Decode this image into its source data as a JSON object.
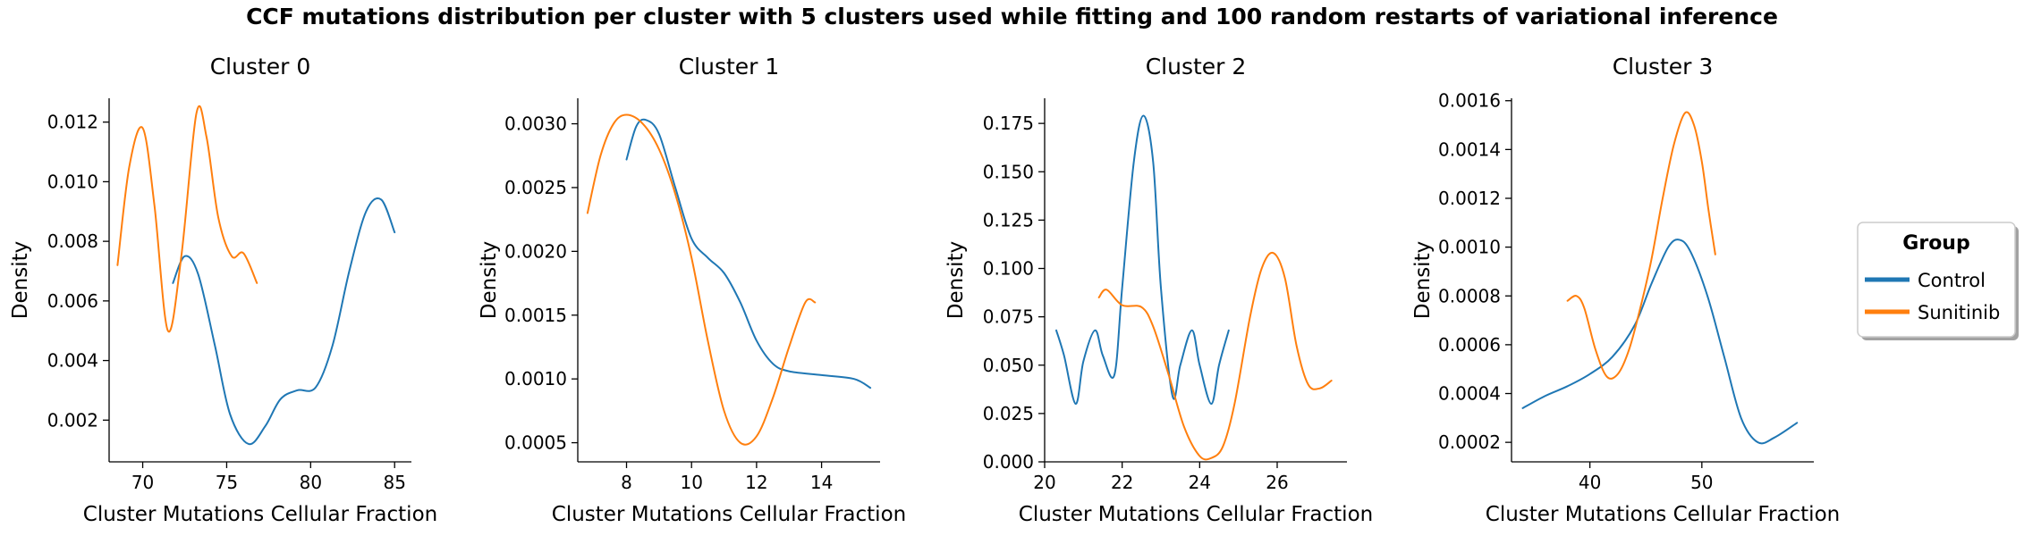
{
  "figure": {
    "title": "CCF mutations distribution per cluster with 5 clusters used while fitting and 100 random restarts of variational inference"
  },
  "legend": {
    "title": "Group",
    "placement": "right",
    "entries": [
      {
        "label": "Control",
        "color": "#1f77b4"
      },
      {
        "label": "Sunitinib",
        "color": "#ff7f0e"
      }
    ]
  },
  "chart_data": [
    {
      "type": "line",
      "title": "Cluster 0",
      "xlabel": "Cluster Mutations Cellular Fraction",
      "ylabel": "Density",
      "xlim": [
        68,
        86
      ],
      "ylim": [
        0.0006,
        0.0128
      ],
      "xticks": [
        70,
        75,
        80,
        85
      ],
      "xtick_labels": [
        "70",
        "75",
        "80",
        "85"
      ],
      "yticks": [
        0.002,
        0.004,
        0.006,
        0.008,
        0.01,
        0.012
      ],
      "ytick_labels": [
        "0.002",
        "0.004",
        "0.006",
        "0.008",
        "0.010",
        "0.012"
      ],
      "series": [
        {
          "name": "Control",
          "color": "#1f77b4",
          "x": [
            71.8,
            72.5,
            73.3,
            74.3,
            75.2,
            76.3,
            77.3,
            78.2,
            79.2,
            80.3,
            81.3,
            82.3,
            83.3,
            84.2,
            85.0
          ],
          "y": [
            0.0066,
            0.0075,
            0.0069,
            0.0045,
            0.0022,
            0.0012,
            0.0018,
            0.0027,
            0.003,
            0.0031,
            0.0045,
            0.007,
            0.009,
            0.0094,
            0.0083
          ]
        },
        {
          "name": "Sunitinib",
          "color": "#ff7f0e",
          "x": [
            68.5,
            69.2,
            70.0,
            70.7,
            71.5,
            72.3,
            73.2,
            73.8,
            74.5,
            75.3,
            76.0,
            76.8
          ],
          "y": [
            0.0072,
            0.0105,
            0.0118,
            0.0092,
            0.005,
            0.0075,
            0.0123,
            0.0115,
            0.0088,
            0.0075,
            0.0076,
            0.0066
          ]
        }
      ]
    },
    {
      "type": "line",
      "title": "Cluster 1",
      "xlabel": "Cluster Mutations Cellular Fraction",
      "ylabel": "Density",
      "xlim": [
        6.5,
        15.8
      ],
      "ylim": [
        0.00035,
        0.0032
      ],
      "xticks": [
        8,
        10,
        12,
        14
      ],
      "xtick_labels": [
        "8",
        "10",
        "12",
        "14"
      ],
      "yticks": [
        0.0005,
        0.001,
        0.0015,
        0.002,
        0.0025,
        0.003
      ],
      "ytick_labels": [
        "0.0005",
        "0.0010",
        "0.0015",
        "0.0020",
        "0.0025",
        "0.0030"
      ],
      "series": [
        {
          "name": "Control",
          "color": "#1f77b4",
          "x": [
            8.0,
            8.3,
            8.6,
            9.0,
            9.5,
            10.0,
            10.5,
            11.0,
            11.5,
            12.0,
            12.5,
            13.0,
            14.0,
            15.0,
            15.5
          ],
          "y": [
            0.00272,
            0.00298,
            0.00303,
            0.00292,
            0.0025,
            0.0021,
            0.00195,
            0.00183,
            0.0016,
            0.0013,
            0.00112,
            0.00106,
            0.00103,
            0.001,
            0.00093
          ]
        },
        {
          "name": "Sunitinib",
          "color": "#ff7f0e",
          "x": [
            6.8,
            7.2,
            7.6,
            8.0,
            8.5,
            9.0,
            9.5,
            10.0,
            10.5,
            11.0,
            11.5,
            12.0,
            12.5,
            13.0,
            13.5,
            13.8
          ],
          "y": [
            0.0023,
            0.00275,
            0.003,
            0.00307,
            0.003,
            0.0028,
            0.00245,
            0.00195,
            0.0013,
            0.00075,
            0.0005,
            0.00055,
            0.00085,
            0.00125,
            0.0016,
            0.0016
          ]
        }
      ]
    },
    {
      "type": "line",
      "title": "Cluster 2",
      "xlabel": "Cluster Mutations Cellular Fraction",
      "ylabel": "Density",
      "xlim": [
        20,
        27.8
      ],
      "ylim": [
        0,
        0.188
      ],
      "xticks": [
        20,
        22,
        24,
        26
      ],
      "xtick_labels": [
        "20",
        "22",
        "24",
        "26"
      ],
      "yticks": [
        0.0,
        0.025,
        0.05,
        0.075,
        0.1,
        0.125,
        0.15,
        0.175
      ],
      "ytick_labels": [
        "0.000",
        "0.025",
        "0.050",
        "0.075",
        "0.100",
        "0.125",
        "0.150",
        "0.175"
      ],
      "series": [
        {
          "name": "Control",
          "color": "#1f77b4",
          "x": [
            20.3,
            20.5,
            20.8,
            21.0,
            21.3,
            21.5,
            21.8,
            22.0,
            22.3,
            22.55,
            22.8,
            23.0,
            23.3,
            23.5,
            23.8,
            24.0,
            24.3,
            24.5,
            24.75
          ],
          "y": [
            0.068,
            0.055,
            0.03,
            0.052,
            0.068,
            0.055,
            0.045,
            0.09,
            0.155,
            0.179,
            0.155,
            0.09,
            0.034,
            0.05,
            0.068,
            0.05,
            0.03,
            0.05,
            0.068
          ]
        },
        {
          "name": "Sunitinib",
          "color": "#ff7f0e",
          "x": [
            21.4,
            21.6,
            22.0,
            22.5,
            22.8,
            23.2,
            23.6,
            24.0,
            24.3,
            24.6,
            24.9,
            25.3,
            25.6,
            25.9,
            26.2,
            26.5,
            26.8,
            27.1,
            27.4
          ],
          "y": [
            0.085,
            0.089,
            0.081,
            0.08,
            0.07,
            0.045,
            0.018,
            0.003,
            0.002,
            0.008,
            0.03,
            0.075,
            0.1,
            0.108,
            0.095,
            0.06,
            0.04,
            0.038,
            0.042
          ]
        }
      ]
    },
    {
      "type": "line",
      "title": "Cluster 3",
      "xlabel": "Cluster Mutations Cellular Fraction",
      "ylabel": "Density",
      "xlim": [
        33,
        60
      ],
      "ylim": [
        0.00012,
        0.00161
      ],
      "xticks": [
        40,
        50
      ],
      "xtick_labels": [
        "40",
        "50"
      ],
      "yticks": [
        0.0002,
        0.0004,
        0.0006,
        0.0008,
        0.001,
        0.0012,
        0.0014,
        0.0016
      ],
      "ytick_labels": [
        "0.0002",
        "0.0004",
        "0.0006",
        "0.0008",
        "0.0010",
        "0.0012",
        "0.0014",
        "0.0016"
      ],
      "series": [
        {
          "name": "Control",
          "color": "#1f77b4",
          "x": [
            34.0,
            36.0,
            38.0,
            40.0,
            42.0,
            44.0,
            45.5,
            47.0,
            48.0,
            49.0,
            50.5,
            52.0,
            53.5,
            55.0,
            56.5,
            58.5
          ],
          "y": [
            0.00034,
            0.00039,
            0.00043,
            0.00048,
            0.00055,
            0.00068,
            0.00085,
            0.001,
            0.00103,
            0.00098,
            0.0008,
            0.00055,
            0.0003,
            0.0002,
            0.00022,
            0.00028
          ]
        },
        {
          "name": "Sunitinib",
          "color": "#ff7f0e",
          "x": [
            38.0,
            38.8,
            39.5,
            40.5,
            41.5,
            42.5,
            43.5,
            44.5,
            45.5,
            46.5,
            47.5,
            48.5,
            49.3,
            50.0,
            50.6,
            51.2
          ],
          "y": [
            0.00078,
            0.0008,
            0.00075,
            0.00058,
            0.00047,
            0.00048,
            0.00058,
            0.00075,
            0.00095,
            0.0012,
            0.00142,
            0.00155,
            0.0015,
            0.00135,
            0.00115,
            0.00097
          ]
        }
      ]
    }
  ]
}
